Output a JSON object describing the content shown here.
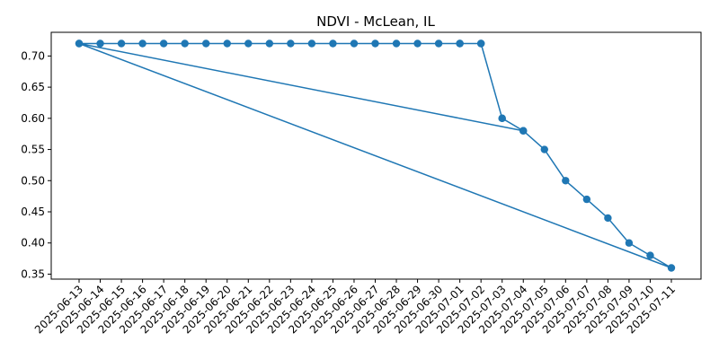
{
  "chart_data": {
    "type": "line",
    "title": "NDVI - McLean, IL",
    "xlabel": "",
    "ylabel": "",
    "categories": [
      "2025-06-13",
      "2025-06-14",
      "2025-06-15",
      "2025-06-16",
      "2025-06-17",
      "2025-06-18",
      "2025-06-19",
      "2025-06-20",
      "2025-06-21",
      "2025-06-22",
      "2025-06-23",
      "2025-06-24",
      "2025-06-25",
      "2025-06-26",
      "2025-06-27",
      "2025-06-28",
      "2025-06-29",
      "2025-06-30",
      "2025-07-01",
      "2025-07-02",
      "2025-07-03",
      "2025-07-04",
      "2025-07-05",
      "2025-07-06",
      "2025-07-07",
      "2025-07-08",
      "2025-07-09",
      "2025-07-10",
      "2025-07-11"
    ],
    "series": [
      {
        "color": "#1f77b4",
        "points": [
          [
            "2025-06-13",
            0.72
          ],
          [
            "2025-06-14",
            0.72
          ],
          [
            "2025-06-15",
            0.72
          ],
          [
            "2025-06-16",
            0.72
          ],
          [
            "2025-06-17",
            0.72
          ],
          [
            "2025-06-18",
            0.72
          ],
          [
            "2025-06-19",
            0.72
          ],
          [
            "2025-06-20",
            0.72
          ],
          [
            "2025-06-21",
            0.72
          ],
          [
            "2025-06-22",
            0.72
          ],
          [
            "2025-06-23",
            0.72
          ],
          [
            "2025-06-24",
            0.72
          ],
          [
            "2025-06-25",
            0.72
          ],
          [
            "2025-06-26",
            0.72
          ],
          [
            "2025-06-27",
            0.72
          ],
          [
            "2025-06-28",
            0.72
          ],
          [
            "2025-06-29",
            0.72
          ],
          [
            "2025-06-30",
            0.72
          ],
          [
            "2025-07-01",
            0.72
          ],
          [
            "2025-07-02",
            0.72
          ],
          [
            "2025-07-03",
            0.6
          ],
          [
            "2025-07-04",
            0.58
          ],
          [
            "2025-06-13",
            0.72
          ],
          [
            "2025-07-11",
            0.36
          ],
          [
            "2025-07-10",
            0.38
          ],
          [
            "2025-07-09",
            0.4
          ],
          [
            "2025-07-08",
            0.44
          ],
          [
            "2025-07-07",
            0.47
          ],
          [
            "2025-07-06",
            0.5
          ],
          [
            "2025-07-05",
            0.55
          ],
          [
            "2025-07-04",
            0.58
          ],
          [
            "2025-07-03",
            0.6
          ],
          [
            "2025-07-02",
            0.72
          ],
          [
            "2025-07-01",
            0.72
          ]
        ]
      }
    ],
    "yticks": [
      0.35,
      0.4,
      0.45,
      0.5,
      0.55,
      0.6,
      0.65,
      0.7
    ],
    "ytick_labels": [
      "0.35",
      "0.40",
      "0.45",
      "0.50",
      "0.55",
      "0.60",
      "0.65",
      "0.70"
    ],
    "ylim": [
      0.342,
      0.738
    ],
    "grid": false,
    "legend": "none"
  }
}
